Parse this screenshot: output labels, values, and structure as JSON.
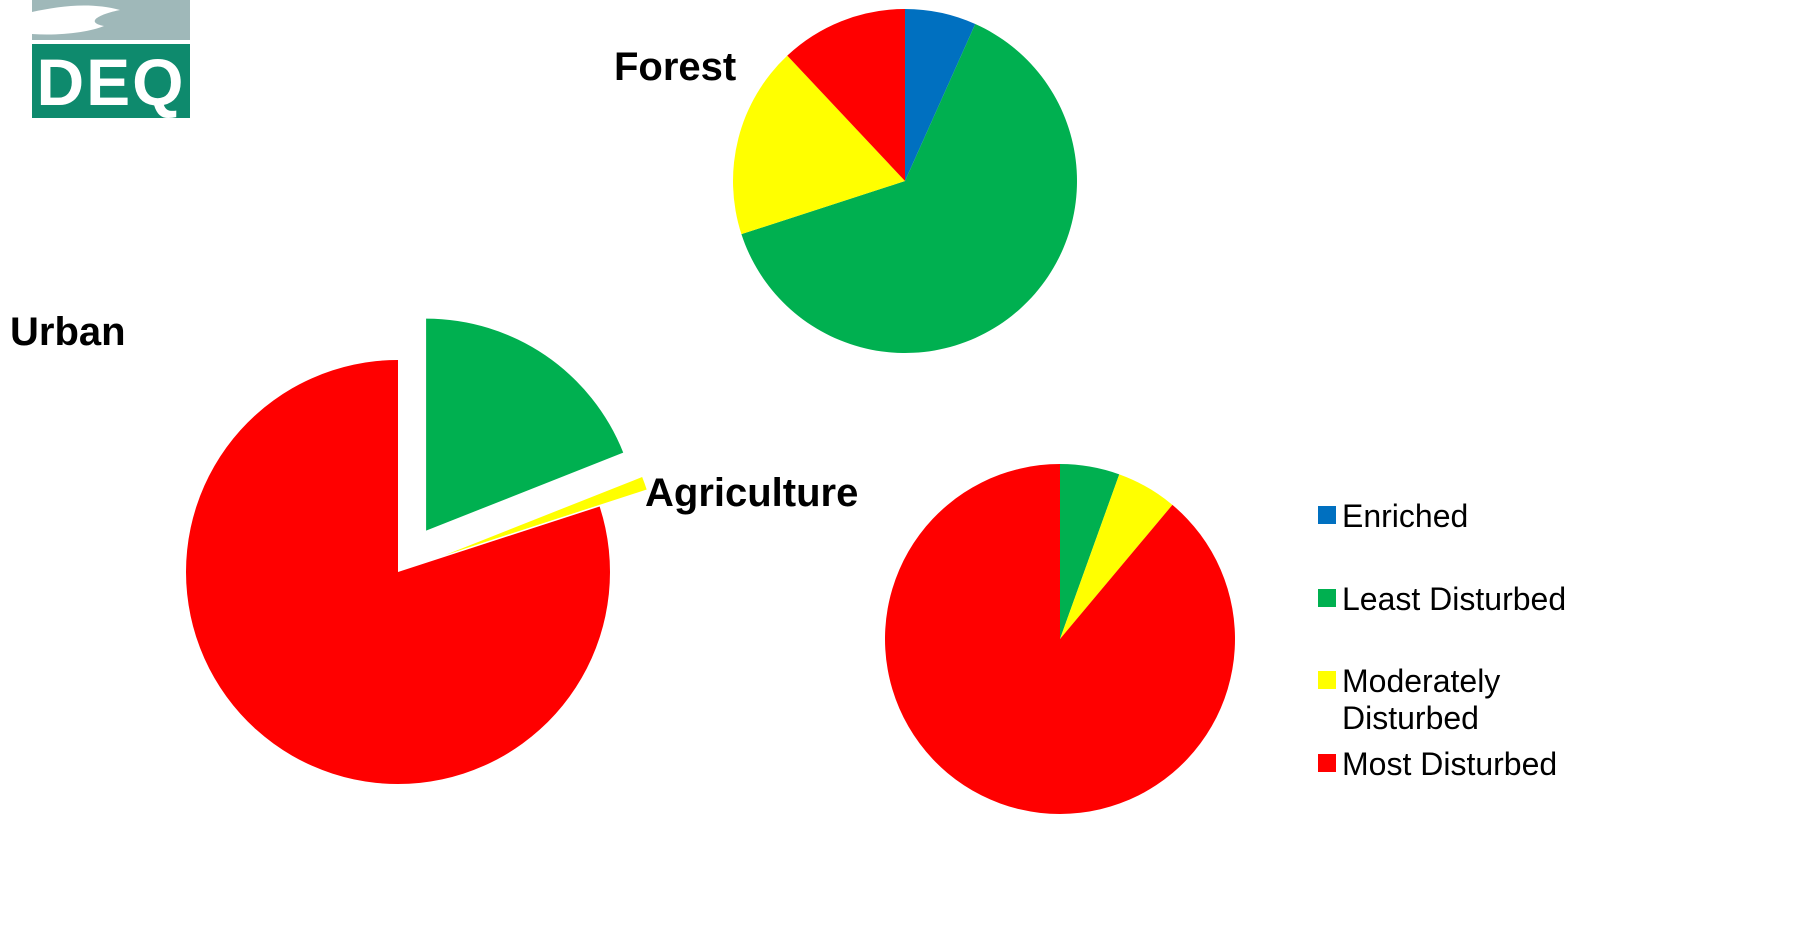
{
  "logo": {
    "text": "DEQ",
    "top_color": "#9fb8b9",
    "bottom_color": "#0e8a6d"
  },
  "chart_data": {
    "type": "pie",
    "categories": [
      "Enriched",
      "Least Disturbed",
      "Moderately Disturbed",
      "Most Disturbed"
    ],
    "colors": [
      "#0070c0",
      "#00b050",
      "#ffff00",
      "#ff0000"
    ],
    "legend": {
      "position": "right",
      "entries": [
        {
          "lines": [
            "Enriched"
          ],
          "color": "#0070c0"
        },
        {
          "lines": [
            "Least Disturbed"
          ],
          "color": "#00b050"
        },
        {
          "lines": [
            "Moderately",
            "Disturbed"
          ],
          "color": "#ffff00"
        },
        {
          "lines": [
            "Most Disturbed"
          ],
          "color": "#ff0000"
        }
      ]
    },
    "pies": [
      {
        "title": "Forest",
        "values": [
          6.7,
          63.3,
          18.0,
          12.0
        ],
        "exploded": false
      },
      {
        "title": "Urban",
        "values": [
          0,
          19.0,
          1.0,
          80.0
        ],
        "exploded": true
      },
      {
        "title": "Agriculture",
        "values": [
          0,
          5.5,
          5.6,
          88.9
        ],
        "exploded": false
      }
    ]
  }
}
